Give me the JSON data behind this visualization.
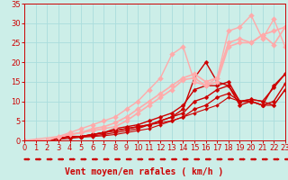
{
  "bg_color": "#cceee8",
  "grid_color": "#aadddd",
  "xlabel": "Vent moyen/en rafales ( km/h )",
  "xlim": [
    0,
    23
  ],
  "ylim": [
    0,
    35
  ],
  "xticks": [
    0,
    1,
    2,
    3,
    4,
    5,
    6,
    7,
    8,
    9,
    10,
    11,
    12,
    13,
    14,
    15,
    16,
    17,
    18,
    19,
    20,
    21,
    22,
    23
  ],
  "yticks": [
    0,
    5,
    10,
    15,
    20,
    25,
    30,
    35
  ],
  "series": [
    {
      "x": [
        0,
        1,
        2,
        3,
        4,
        5,
        6,
        7,
        8,
        9,
        10,
        11,
        12,
        13,
        14,
        15,
        16,
        17,
        18,
        19,
        20,
        21,
        22,
        23
      ],
      "y": [
        0,
        0,
        0,
        0.5,
        1,
        1,
        1.5,
        2,
        2.5,
        3,
        3.5,
        4,
        5,
        6,
        8,
        16,
        20,
        15,
        14,
        10,
        10,
        9,
        14,
        17
      ],
      "color": "#cc0000",
      "lw": 1.0,
      "ms": 2.5
    },
    {
      "x": [
        0,
        1,
        2,
        3,
        4,
        5,
        6,
        7,
        8,
        9,
        10,
        11,
        12,
        13,
        14,
        15,
        16,
        17,
        18,
        19,
        20,
        21,
        22,
        23
      ],
      "y": [
        0,
        0,
        0,
        0.5,
        1,
        1,
        1.5,
        2,
        3,
        3.5,
        4,
        5,
        6,
        7,
        9,
        13,
        14,
        14,
        15,
        10,
        10.5,
        10,
        13.5,
        17
      ],
      "color": "#cc0000",
      "lw": 1.0,
      "ms": 2.5
    },
    {
      "x": [
        0,
        1,
        2,
        3,
        4,
        5,
        6,
        7,
        8,
        9,
        10,
        11,
        12,
        13,
        14,
        15,
        16,
        17,
        18,
        19,
        20,
        21,
        22,
        23
      ],
      "y": [
        0,
        0,
        0,
        0.5,
        1,
        1,
        1.5,
        2,
        2.5,
        3,
        3.5,
        4,
        5,
        6,
        7,
        10,
        11,
        13,
        14,
        9,
        10,
        9,
        10,
        14.5
      ],
      "color": "#cc0000",
      "lw": 1.0,
      "ms": 2.5
    },
    {
      "x": [
        0,
        1,
        2,
        3,
        4,
        5,
        6,
        7,
        8,
        9,
        10,
        11,
        12,
        13,
        14,
        15,
        16,
        17,
        18,
        19,
        20,
        21,
        22,
        23
      ],
      "y": [
        0,
        0,
        0,
        0.5,
        0.8,
        1,
        1.2,
        1.5,
        2,
        2.5,
        3,
        4,
        4.5,
        5,
        6,
        8,
        9,
        11,
        12,
        10,
        10,
        9,
        9,
        13
      ],
      "color": "#cc0000",
      "lw": 0.9,
      "ms": 2.5
    },
    {
      "x": [
        0,
        1,
        2,
        3,
        4,
        5,
        6,
        7,
        8,
        9,
        10,
        11,
        12,
        13,
        14,
        15,
        16,
        17,
        18,
        19,
        20,
        21,
        22,
        23
      ],
      "y": [
        0,
        0,
        0,
        0.3,
        0.5,
        0.8,
        1,
        1.2,
        1.5,
        2,
        2.5,
        3,
        4,
        5,
        6,
        7,
        8,
        9,
        11,
        10,
        10.5,
        10,
        9,
        13
      ],
      "color": "#cc0000",
      "lw": 0.8,
      "ms": 2
    },
    {
      "x": [
        0,
        1,
        2,
        3,
        4,
        5,
        6,
        7,
        8,
        9,
        10,
        11,
        12,
        13,
        14,
        15,
        16,
        17,
        18,
        19,
        20,
        21,
        22,
        23
      ],
      "y": [
        0,
        0,
        0,
        1,
        1.5,
        2,
        2.5,
        3,
        3.5,
        5,
        7,
        9,
        11,
        13,
        15.5,
        16,
        14,
        15,
        24,
        25,
        25,
        27,
        24.5,
        29
      ],
      "color": "#ffaaaa",
      "lw": 1.2,
      "ms": 3
    },
    {
      "x": [
        0,
        1,
        2,
        3,
        4,
        5,
        6,
        7,
        8,
        9,
        10,
        11,
        12,
        13,
        14,
        15,
        16,
        17,
        18,
        19,
        20,
        21,
        22,
        23
      ],
      "y": [
        0,
        0,
        0,
        1,
        1.5,
        2,
        3,
        3.5,
        4.5,
        6,
        8,
        10,
        12,
        14,
        16,
        17,
        15,
        16,
        25,
        26,
        25,
        27,
        28,
        29
      ],
      "color": "#ffaaaa",
      "lw": 1.2,
      "ms": 3
    },
    {
      "x": [
        0,
        3,
        4,
        5,
        6,
        7,
        8,
        9,
        10,
        11,
        12,
        13,
        14,
        15,
        16,
        17,
        18,
        19,
        20,
        21,
        22,
        23
      ],
      "y": [
        0,
        1,
        2,
        3,
        4,
        5,
        6,
        8,
        10,
        13,
        16,
        22,
        24,
        15,
        14,
        16,
        28,
        29,
        32,
        26,
        31,
        24
      ],
      "color": "#ffaaaa",
      "lw": 1.0,
      "ms": 3
    }
  ],
  "arrow_color": "#cc0000",
  "xlabel_fontsize": 7,
  "tick_fontsize": 6
}
